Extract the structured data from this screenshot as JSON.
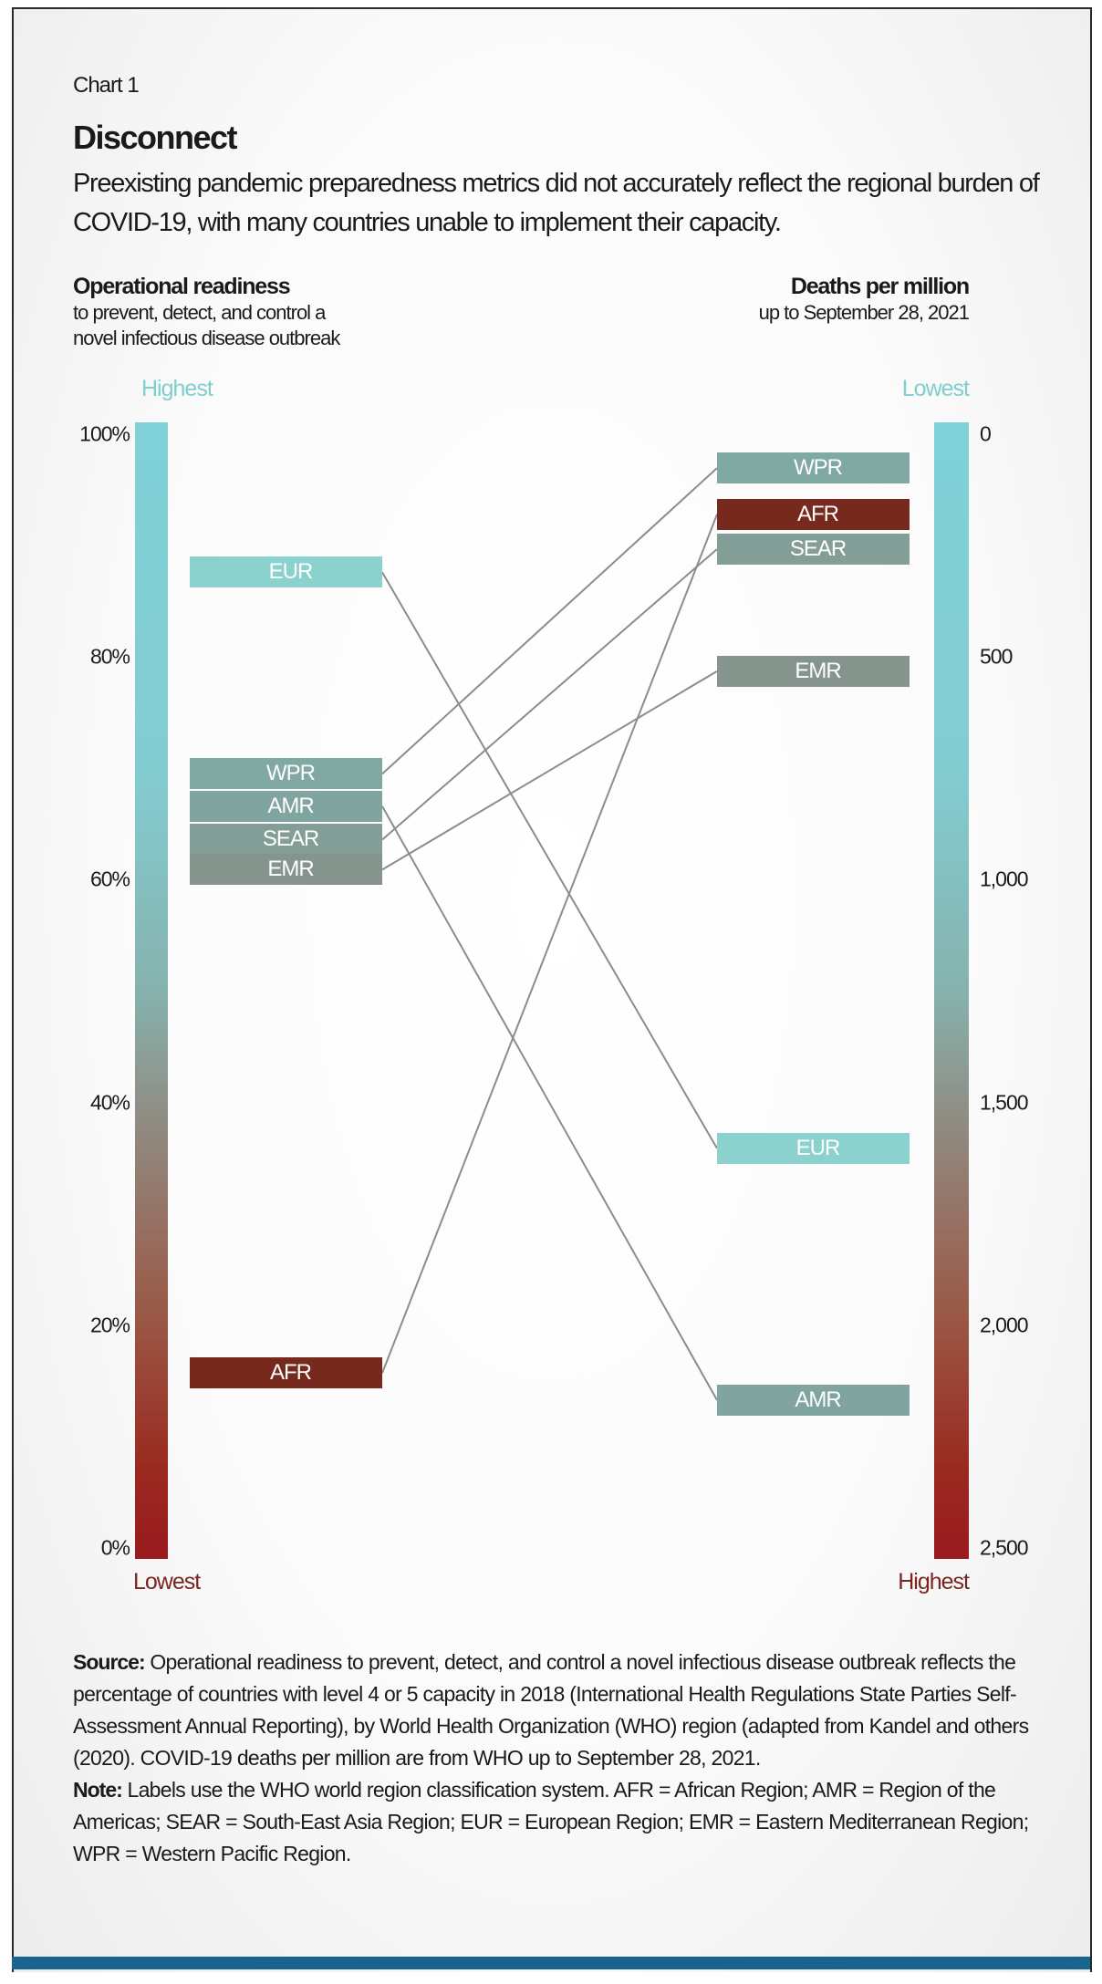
{
  "chart_label": "Chart 1",
  "title": "Disconnect",
  "subtitle": "Preexisting pandemic preparedness metrics did not accurately reflect the regional burden of COVID-19, with many countries unable to implement their capacity.",
  "left_axis": {
    "heading": "Operational readiness",
    "sub1": "to prevent, detect, and control a",
    "sub2": "novel infectious disease outbreak",
    "top_label": "Highest",
    "bottom_label": "Lowest"
  },
  "right_axis": {
    "heading": "Deaths per million",
    "sub1": "up to September 28, 2021",
    "top_label": "Lowest",
    "bottom_label": "Highest"
  },
  "colors": {
    "teal": "#80d1d8",
    "red_label": "#7a2620",
    "link": "#8c8c8c",
    "blue_bar": "#17648f"
  },
  "chart_data": {
    "type": "slope",
    "left": {
      "label": "Operational readiness (%)",
      "ylim": [
        0,
        100
      ],
      "ticks": [
        "100%",
        "80%",
        "60%",
        "40%",
        "20%",
        "0%"
      ],
      "tick_values": [
        100,
        80,
        60,
        40,
        20,
        0
      ]
    },
    "right": {
      "label": "Deaths per million",
      "ylim": [
        0,
        2500
      ],
      "ticks": [
        "0",
        "500",
        "1,000",
        "1,500",
        "2,000",
        "2,500"
      ],
      "tick_values": [
        0,
        500,
        1000,
        1500,
        2000,
        2500
      ]
    },
    "series": [
      {
        "name": "EUR",
        "readiness": 87.6,
        "deaths": 1603,
        "color": "#8bd2cf"
      },
      {
        "name": "WPR",
        "readiness": 69.5,
        "deaths": 76,
        "color": "#80a9a4"
      },
      {
        "name": "AMR",
        "readiness": 66.6,
        "deaths": 2168,
        "color": "#80a49f"
      },
      {
        "name": "SEAR",
        "readiness": 63.6,
        "deaths": 258,
        "color": "#839d97"
      },
      {
        "name": "EMR",
        "readiness": 60.9,
        "deaths": 532,
        "color": "#86948e"
      },
      {
        "name": "AFR",
        "readiness": 15.7,
        "deaths": 180,
        "color": "#78291e"
      }
    ]
  },
  "source": {
    "label": "Source:",
    "text": " Operational readiness to prevent, detect, and control a novel infectious disease outbreak reflects the percentage of countries with level 4 or 5 capacity in 2018 (International Health Regulations State Parties Self-Assessment Annual Reporting), by World Health Organization (WHO) region (adapted from Kandel and others (2020). COVID-19 deaths per million are from WHO up to September 28, 2021."
  },
  "note": {
    "label": "Note:",
    "text": " Labels use the WHO world region classification system. AFR = African Region; AMR = Region of the Americas; SEAR = South-East Asia Region; EUR = European Region; EMR = Eastern Mediterranean Region; WPR = Western Pacific Region."
  }
}
